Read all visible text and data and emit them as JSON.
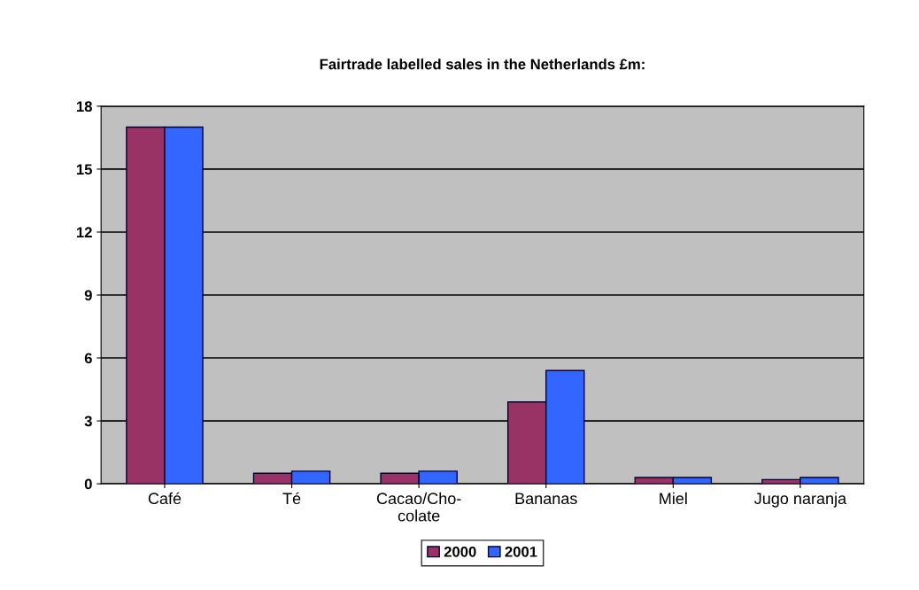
{
  "chart_data": {
    "type": "bar",
    "title": "Fairtrade labelled sales in the Netherlands £m:",
    "categories": [
      "Café",
      "Té",
      "Cacao/Cho-\ncolate",
      "Bananas",
      "Miel",
      "Jugo naranja"
    ],
    "series": [
      {
        "name": "2000",
        "color": "#993366",
        "values": [
          17.0,
          0.5,
          0.5,
          3.9,
          0.3,
          0.2
        ]
      },
      {
        "name": "2001",
        "color": "#3366ff",
        "values": [
          17.0,
          0.6,
          0.6,
          5.4,
          0.3,
          0.3
        ]
      }
    ],
    "ylim": [
      0,
      18
    ],
    "yticks": [
      0,
      3,
      6,
      9,
      12,
      15,
      18
    ],
    "grid": "y",
    "legend": "bottom"
  }
}
